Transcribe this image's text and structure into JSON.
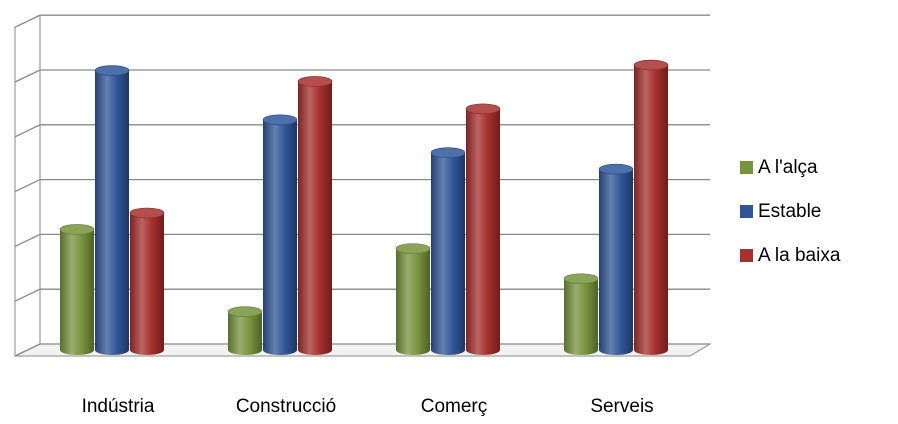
{
  "chart_data": {
    "type": "bar",
    "title": "",
    "xlabel": "",
    "ylabel": "",
    "categories": [
      "Indústria",
      "Construcció",
      "Comerç",
      "Serveis"
    ],
    "series": [
      {
        "name": "A l'alça",
        "color": "#77933C",
        "values": [
          22,
          7,
          18.5,
          13
        ]
      },
      {
        "name": "Estable",
        "color": "#2F5597",
        "values": [
          51,
          42,
          36,
          33
        ]
      },
      {
        "name": "A la baixa",
        "color": "#A5302E",
        "values": [
          25,
          49,
          44,
          52
        ]
      }
    ],
    "ylim": [
      0,
      60
    ],
    "y_ticks": [
      0,
      10,
      20,
      30,
      40,
      50,
      60
    ],
    "y_tick_labels_shown": false,
    "grid": true,
    "legend_position": "right",
    "style": "3d-cylinder"
  }
}
